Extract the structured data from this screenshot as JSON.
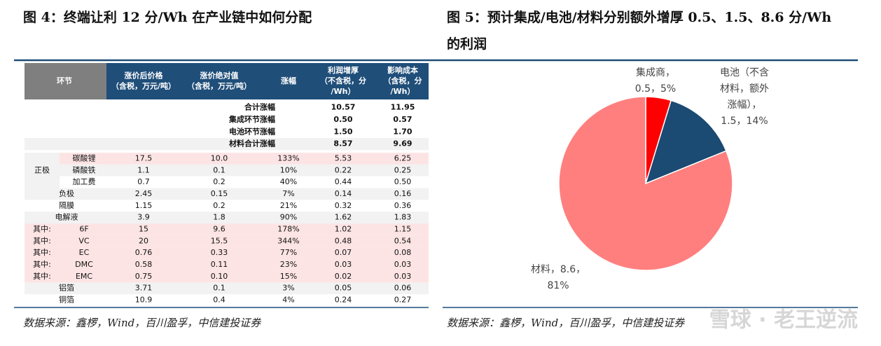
{
  "left": {
    "title": "图 4：终端让利 12 分/Wh 在产业链中如何分配",
    "table": {
      "header": [
        [
          "环节"
        ],
        [
          "涨价后价格",
          "（含税，万元/吨）"
        ],
        [
          "涨价绝对值",
          "（含税，万元/吨）"
        ],
        [
          "涨幅"
        ],
        [
          "利润增厚",
          "（不含税，分",
          "/Wh）"
        ],
        [
          "影响成本",
          "（含税，分",
          "/Wh）"
        ]
      ],
      "summary": [
        [
          "合计涨幅",
          "10.57",
          "11.95"
        ],
        [
          "集成环节涨幅",
          "0.50",
          "0.57"
        ],
        [
          "电池环节涨幅",
          "1.50",
          "1.70"
        ],
        [
          "材料合计涨幅",
          "8.57",
          "9.69"
        ]
      ],
      "group": "正极",
      "rows": [
        {
          "item": "碳酸锂",
          "cells": [
            "17.5",
            "10.0",
            "133%",
            "5.53",
            "6.25"
          ],
          "highlight": true
        },
        {
          "item": "磷酸铁",
          "cells": [
            "1.1",
            "0.1",
            "10%",
            "0.22",
            "0.25"
          ]
        },
        {
          "item": "加工费",
          "cells": [
            "0.7",
            "0.2",
            "40%",
            "0.44",
            "0.50"
          ]
        },
        {
          "item": "负极",
          "cells": [
            "2.45",
            "0.15",
            "7%",
            "0.14",
            "0.16"
          ]
        },
        {
          "item": "隔膜",
          "cells": [
            "1.15",
            "0.2",
            "21%",
            "0.32",
            "0.36"
          ]
        },
        {
          "item": "电解液",
          "cells": [
            "3.9",
            "1.8",
            "90%",
            "1.62",
            "1.83"
          ]
        },
        {
          "prefix": "其中:",
          "item": "6F",
          "cells": [
            "15",
            "9.6",
            "178%",
            "1.02",
            "1.15"
          ],
          "highlight": true
        },
        {
          "prefix": "其中:",
          "item": "VC",
          "cells": [
            "20",
            "15.5",
            "344%",
            "0.48",
            "0.54"
          ],
          "highlight": true
        },
        {
          "prefix": "其中:",
          "item": "EC",
          "cells": [
            "0.76",
            "0.33",
            "77%",
            "0.07",
            "0.08"
          ],
          "highlight": true
        },
        {
          "prefix": "其中:",
          "item": "DMC",
          "cells": [
            "0.58",
            "0.11",
            "23%",
            "0.03",
            "0.03"
          ],
          "highlight": true
        },
        {
          "prefix": "其中:",
          "item": "EMC",
          "cells": [
            "0.75",
            "0.10",
            "15%",
            "0.02",
            "0.03"
          ],
          "highlight": true
        },
        {
          "item": "铝箔",
          "cells": [
            "3.71",
            "0.1",
            "3%",
            "0.05",
            "0.06"
          ]
        },
        {
          "item": "铜箔",
          "cells": [
            "10.9",
            "0.4",
            "4%",
            "0.24",
            "0.27"
          ]
        }
      ]
    },
    "source": "数据来源：鑫椤，Wind，百川盈孚，中信建投证券"
  },
  "chart_data": {
    "type": "pie",
    "title": [
      "图 5：预计集成/电池/材料分别额外增厚 0.5、1.5、8.6 分/Wh",
      "的利润"
    ],
    "values": [
      0.5,
      1.5,
      8.6
    ],
    "colors": [
      "#ff0000",
      "#1b4a72",
      "#ff7f7f"
    ],
    "labels": [
      [
        "集成商，",
        "0.5，5%"
      ],
      [
        "电池（不含",
        "材料，额外",
        "涨幅），",
        "1.5，14%"
      ],
      [
        "材料，8.6，",
        "81%"
      ]
    ]
  },
  "right_source": "数据来源：鑫椤，Wind，百川盈孚，中信建投证券",
  "watermark": "雪球 · 老王逆流"
}
